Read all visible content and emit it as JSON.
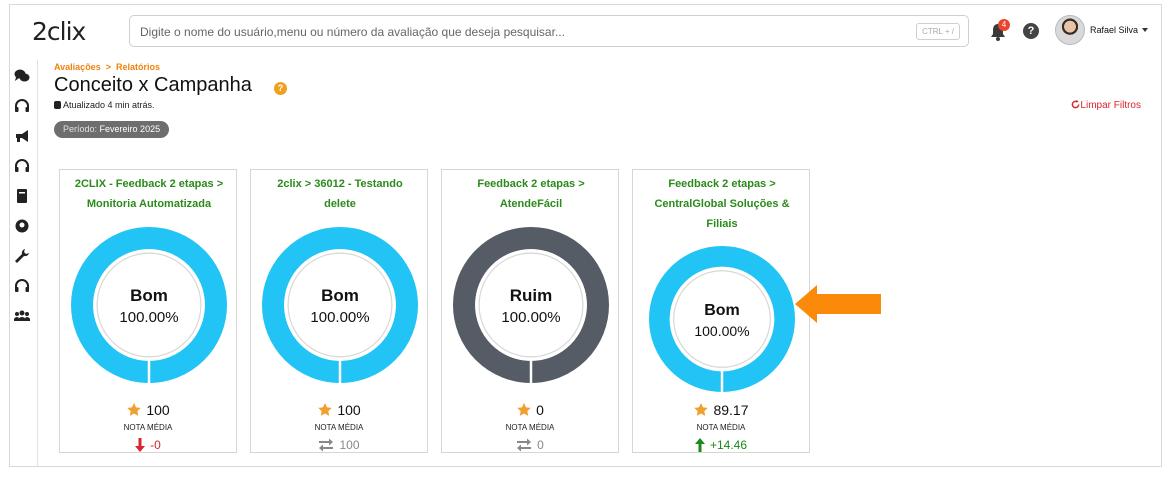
{
  "header": {
    "logo": "2clix",
    "search_placeholder": "Digite o nome do usuário,menu ou número da avaliação que deseja pesquisar...",
    "search_shortcut": "CTRL + /",
    "notifications_count": "4",
    "help_label": "?",
    "user_name": "Rafael Silva"
  },
  "sidebar": {
    "items": [
      {
        "icon": "chat-icon"
      },
      {
        "icon": "headset-icon"
      },
      {
        "icon": "megaphone-icon"
      },
      {
        "icon": "headset-icon"
      },
      {
        "icon": "book-icon"
      },
      {
        "icon": "support-agent-icon"
      },
      {
        "icon": "wrench-icon"
      },
      {
        "icon": "headset-icon"
      },
      {
        "icon": "users-icon"
      }
    ]
  },
  "page": {
    "breadcrumb": [
      "Avaliações",
      "Relatórios"
    ],
    "breadcrumb_sep": ">",
    "title": "Conceito x Campanha",
    "title_help": "?",
    "updated": "Atualizado 4 min atrás.",
    "clear_filters": "Limpar Filtros",
    "period_label": "Período:",
    "period_value": "Fevereiro 2025"
  },
  "colors": {
    "good": "#22c4f5",
    "bad": "#565c66",
    "accent_orange": "#fb8a0a",
    "green_title": "#2a8a1a",
    "delta_down": "#d9262c",
    "delta_up": "#1a8a1a",
    "delta_neutral": "#888888"
  },
  "cards": [
    {
      "title_line1": "2CLIX - Feedback 2 etapas >",
      "title_line2": "Monitoria Automatizada",
      "title_line3": "",
      "concept": "Bom",
      "percent": "100.00%",
      "status": "good",
      "score": "100",
      "score_label": "NOTA MÉDIA",
      "delta": "-0",
      "delta_dir": "down"
    },
    {
      "title_line1": "2clix > 36012 - Testando",
      "title_line2": "delete",
      "title_line3": "",
      "concept": "Bom",
      "percent": "100.00%",
      "status": "good",
      "score": "100",
      "score_label": "NOTA MÉDIA",
      "delta": "100",
      "delta_dir": "neutral"
    },
    {
      "title_line1": "Feedback 2 etapas >",
      "title_line2": "AtendeFácil",
      "title_line3": "",
      "concept": "Ruim",
      "percent": "100.00%",
      "status": "bad",
      "score": "0",
      "score_label": "NOTA MÉDIA",
      "delta": "0",
      "delta_dir": "neutral"
    },
    {
      "title_line1": "Feedback 2 etapas >",
      "title_line2": "CentralGlobal Soluções &",
      "title_line3": "Filiais",
      "concept": "Bom",
      "percent": "100.00%",
      "status": "good",
      "score": "89.17",
      "score_label": "NOTA MÉDIA",
      "delta": "+14.46",
      "delta_dir": "up"
    }
  ]
}
